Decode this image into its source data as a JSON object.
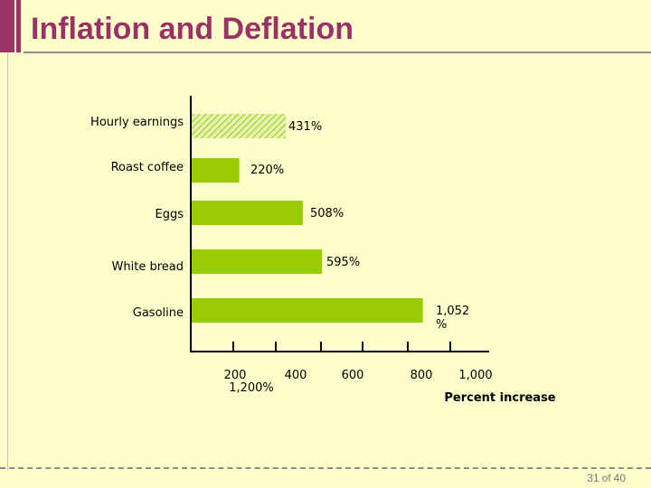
{
  "slide": {
    "title": "Inflation and Deflation",
    "page_current": "31",
    "page_of": "of",
    "page_total": "40"
  },
  "chart_data": {
    "type": "bar",
    "orientation": "horizontal",
    "categories": [
      "Hourly earnings",
      "Roast coffee",
      "Eggs",
      "White bread",
      "Gasoline"
    ],
    "values": [
      431,
      220,
      508,
      595,
      1052
    ],
    "data_labels": [
      "431%",
      "220%",
      "508%",
      "595%",
      "1,052\n%"
    ],
    "patterns": [
      "hatched",
      "solid",
      "solid",
      "solid",
      "solid"
    ],
    "x_ticks": [
      "200",
      "400",
      "600",
      "800",
      "1,000"
    ],
    "x_extra_label": "1,200%",
    "xlabel": "Percent increase",
    "ylabel": "",
    "grid": false,
    "bar_color": "#99CC00",
    "hatch_color": "#99CC00"
  }
}
